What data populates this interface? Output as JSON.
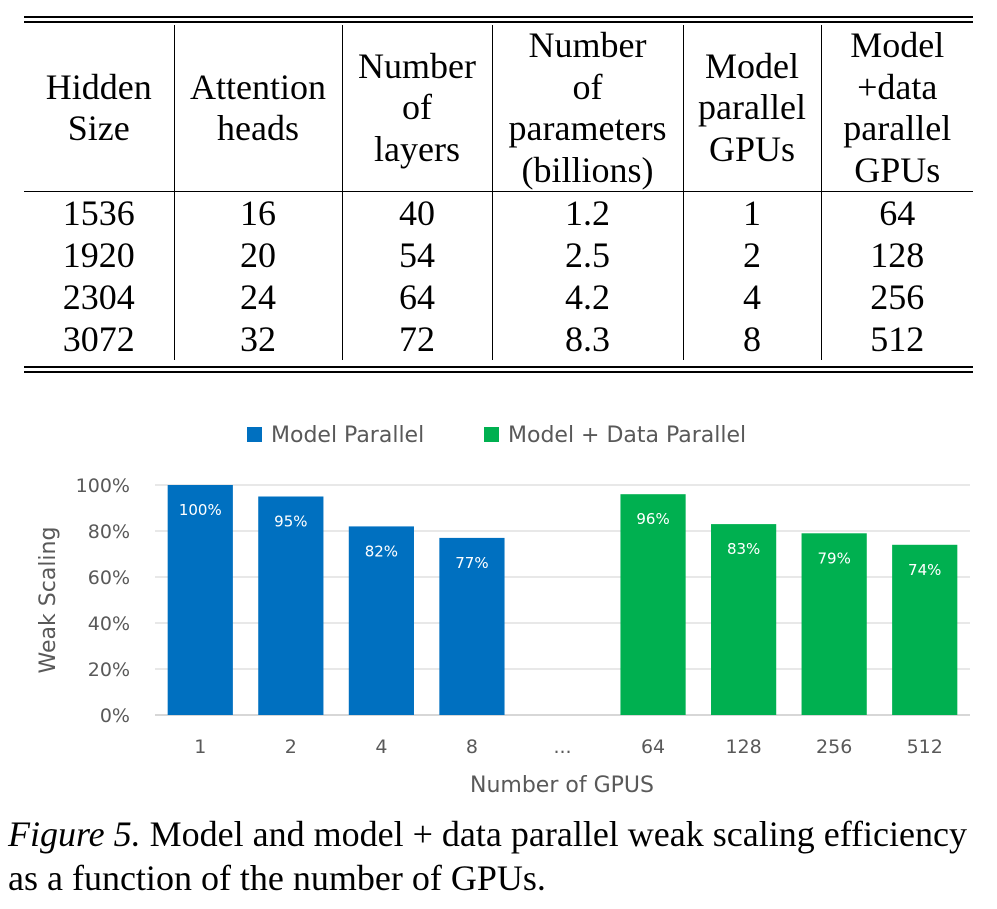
{
  "table": {
    "headers": [
      [
        "Hidden",
        "Size"
      ],
      [
        "Attention",
        "heads"
      ],
      [
        "Number",
        "of",
        "layers"
      ],
      [
        "Number",
        "of",
        "parameters",
        "(billions)"
      ],
      [
        "Model",
        "parallel",
        "GPUs"
      ],
      [
        "Model",
        "+data",
        "parallel",
        "GPUs"
      ]
    ],
    "rows": [
      [
        "1536",
        "16",
        "40",
        "1.2",
        "1",
        "64"
      ],
      [
        "1920",
        "20",
        "54",
        "2.5",
        "2",
        "128"
      ],
      [
        "2304",
        "24",
        "64",
        "4.2",
        "4",
        "256"
      ],
      [
        "3072",
        "32",
        "72",
        "8.3",
        "8",
        "512"
      ]
    ]
  },
  "chart_data": {
    "type": "bar",
    "title": "",
    "xlabel": "Number of GPUS",
    "ylabel": "Weak Scaling",
    "ylim": [
      0,
      100
    ],
    "yticks": [
      "0%",
      "20%",
      "40%",
      "60%",
      "80%",
      "100%"
    ],
    "grid": true,
    "legend_position": "top",
    "categories": [
      "1",
      "2",
      "4",
      "8",
      "...",
      "64",
      "128",
      "256",
      "512"
    ],
    "series": [
      {
        "name": "Model Parallel",
        "color": "#0070C0",
        "values": [
          100,
          95,
          82,
          77,
          null,
          null,
          null,
          null,
          null
        ],
        "labels": [
          "100%",
          "95%",
          "82%",
          "77%",
          "",
          "",
          "",
          "",
          ""
        ]
      },
      {
        "name": "Model + Data Parallel",
        "color": "#00B050",
        "values": [
          null,
          null,
          null,
          null,
          null,
          96,
          83,
          79,
          74
        ],
        "labels": [
          "",
          "",
          "",
          "",
          "",
          "96%",
          "83%",
          "79%",
          "74%"
        ]
      }
    ]
  },
  "caption": {
    "figure_label": "Figure 5.",
    "text": " Model and model + data parallel weak scaling efficiency as a function of the number of GPUs."
  }
}
